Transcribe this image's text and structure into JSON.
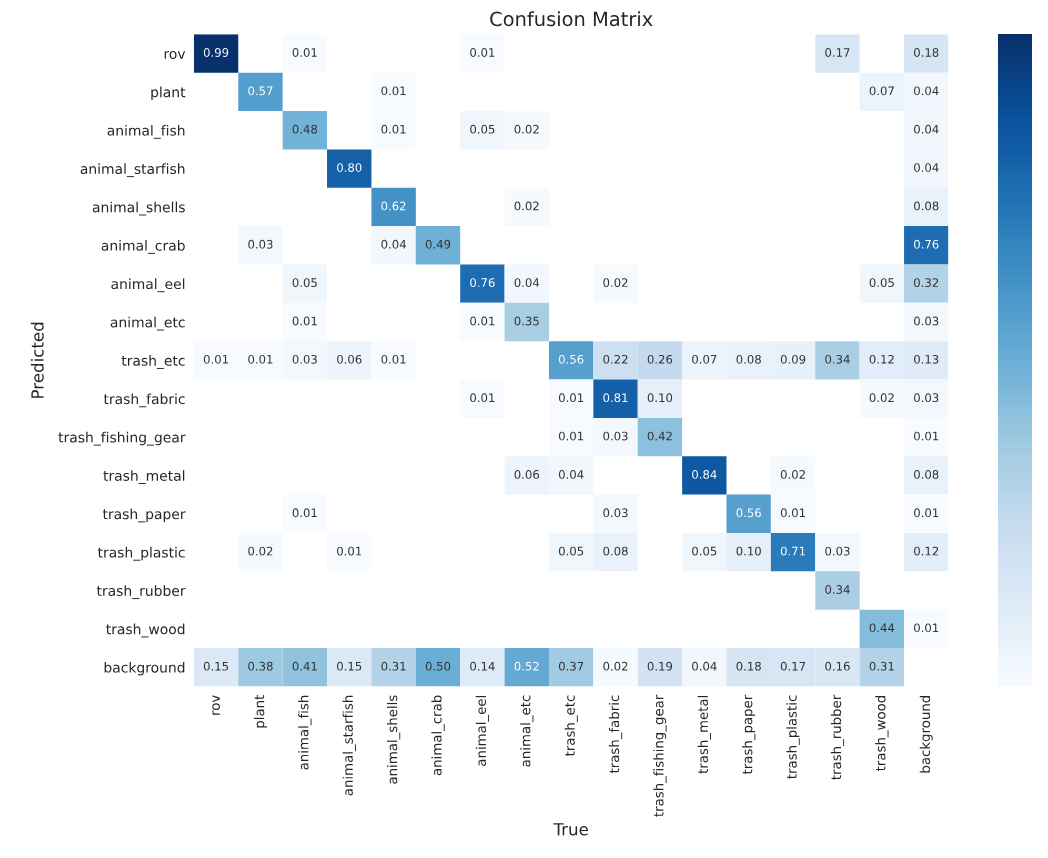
{
  "chart_data": {
    "type": "heatmap",
    "title": "Confusion Matrix",
    "xlabel": "True",
    "ylabel": "Predicted",
    "categories": [
      "rov",
      "plant",
      "animal_fish",
      "animal_starfish",
      "animal_shells",
      "animal_crab",
      "animal_eel",
      "animal_etc",
      "trash_etc",
      "trash_fabric",
      "trash_fishing_gear",
      "trash_metal",
      "trash_paper",
      "trash_plastic",
      "trash_rubber",
      "trash_wood",
      "background"
    ],
    "y_categories": [
      "rov",
      "plant",
      "animal_fish",
      "animal_starfish",
      "animal_shells",
      "animal_crab",
      "animal_eel",
      "animal_etc",
      "trash_etc",
      "trash_fabric",
      "trash_fishing_gear",
      "trash_metal",
      "trash_paper",
      "trash_plastic",
      "trash_rubber",
      "trash_wood",
      "background"
    ],
    "cells": [
      [
        0.99,
        null,
        0.01,
        null,
        null,
        null,
        0.01,
        null,
        null,
        null,
        null,
        null,
        null,
        null,
        0.17,
        null,
        0.18
      ],
      [
        null,
        0.57,
        null,
        null,
        0.01,
        null,
        null,
        null,
        null,
        null,
        null,
        null,
        null,
        null,
        null,
        0.07,
        0.04
      ],
      [
        null,
        null,
        0.48,
        null,
        0.01,
        null,
        0.05,
        0.02,
        null,
        null,
        null,
        null,
        null,
        null,
        null,
        null,
        0.04
      ],
      [
        null,
        null,
        null,
        0.8,
        null,
        null,
        null,
        null,
        null,
        null,
        null,
        null,
        null,
        null,
        null,
        null,
        0.04
      ],
      [
        null,
        null,
        null,
        null,
        0.62,
        null,
        null,
        0.02,
        null,
        null,
        null,
        null,
        null,
        null,
        null,
        null,
        0.08
      ],
      [
        null,
        0.03,
        null,
        null,
        0.04,
        0.49,
        null,
        null,
        null,
        null,
        null,
        null,
        null,
        null,
        null,
        null,
        0.76
      ],
      [
        null,
        null,
        0.05,
        null,
        null,
        null,
        0.76,
        0.04,
        null,
        0.02,
        null,
        null,
        null,
        null,
        null,
        0.05,
        0.32
      ],
      [
        null,
        null,
        0.01,
        null,
        null,
        null,
        0.01,
        0.35,
        null,
        null,
        null,
        null,
        null,
        null,
        null,
        null,
        0.03
      ],
      [
        0.01,
        0.01,
        0.03,
        0.06,
        0.01,
        null,
        null,
        null,
        0.56,
        0.22,
        0.26,
        0.07,
        0.08,
        0.09,
        0.34,
        0.12,
        0.13
      ],
      [
        null,
        null,
        null,
        null,
        null,
        null,
        0.01,
        null,
        0.01,
        0.81,
        0.1,
        null,
        null,
        null,
        null,
        0.02,
        0.03
      ],
      [
        null,
        null,
        null,
        null,
        null,
        null,
        null,
        null,
        0.01,
        0.03,
        0.42,
        null,
        null,
        null,
        null,
        null,
        0.01
      ],
      [
        null,
        null,
        null,
        null,
        null,
        null,
        null,
        0.06,
        0.04,
        null,
        null,
        0.84,
        null,
        0.02,
        null,
        null,
        0.08
      ],
      [
        null,
        null,
        0.01,
        null,
        null,
        null,
        null,
        null,
        null,
        0.03,
        null,
        null,
        0.56,
        0.01,
        null,
        null,
        0.01
      ],
      [
        null,
        0.02,
        null,
        0.01,
        null,
        null,
        null,
        null,
        0.05,
        0.08,
        null,
        0.05,
        0.1,
        0.71,
        0.03,
        null,
        0.12
      ],
      [
        null,
        null,
        null,
        null,
        null,
        null,
        null,
        null,
        null,
        null,
        null,
        null,
        null,
        null,
        0.34,
        null,
        null
      ],
      [
        null,
        null,
        null,
        null,
        null,
        null,
        null,
        null,
        null,
        null,
        null,
        null,
        null,
        null,
        null,
        0.44,
        0.01
      ],
      [
        0.15,
        0.38,
        0.41,
        0.15,
        0.31,
        0.5,
        0.14,
        0.52,
        0.37,
        0.02,
        0.19,
        0.04,
        0.18,
        0.17,
        0.16,
        0.31,
        null
      ]
    ],
    "cell_labels": [
      [
        "0.99",
        null,
        "0.01",
        null,
        null,
        null,
        "0.01",
        null,
        null,
        null,
        null,
        null,
        null,
        null,
        "0.17",
        null,
        "0.18"
      ],
      [
        null,
        "0.57",
        null,
        null,
        "0.01",
        null,
        null,
        null,
        null,
        null,
        null,
        null,
        null,
        null,
        null,
        "0.07",
        "0.04"
      ],
      [
        null,
        null,
        "0.48",
        null,
        "0.01",
        null,
        "0.05",
        "0.02",
        null,
        null,
        null,
        null,
        null,
        null,
        null,
        null,
        "0.04"
      ],
      [
        null,
        null,
        null,
        "0.80",
        null,
        null,
        null,
        null,
        null,
        null,
        null,
        null,
        null,
        null,
        null,
        null,
        "0.04"
      ],
      [
        null,
        null,
        null,
        null,
        "0.62",
        null,
        null,
        "0.02",
        null,
        null,
        null,
        null,
        null,
        null,
        null,
        null,
        "0.08"
      ],
      [
        null,
        "0.03",
        null,
        null,
        "0.04",
        "0.49",
        null,
        null,
        null,
        null,
        null,
        null,
        null,
        null,
        null,
        null,
        "0.76"
      ],
      [
        null,
        null,
        "0.05",
        null,
        null,
        null,
        "0.76",
        "0.04",
        null,
        "0.02",
        null,
        null,
        null,
        null,
        null,
        "0.05",
        "0.32"
      ],
      [
        null,
        null,
        "0.01",
        null,
        null,
        null,
        "0.01",
        "0.35",
        null,
        null,
        null,
        null,
        null,
        null,
        null,
        null,
        "0.03"
      ],
      [
        "0.01",
        "0.01",
        "0.03",
        "0.06",
        "0.01",
        null,
        null,
        null,
        "0.56",
        "0.22",
        "0.26",
        "0.07",
        "0.08",
        "0.09",
        "0.34",
        "0.12",
        "0.13"
      ],
      [
        null,
        null,
        null,
        null,
        null,
        null,
        "0.01",
        null,
        "0.01",
        "0.81",
        "0.10",
        null,
        null,
        null,
        null,
        "0.02",
        "0.03"
      ],
      [
        null,
        null,
        null,
        null,
        null,
        null,
        null,
        null,
        "0.01",
        "0.03",
        "0.42",
        null,
        null,
        null,
        null,
        null,
        "0.01"
      ],
      [
        null,
        null,
        null,
        null,
        null,
        null,
        null,
        "0.06",
        "0.04",
        null,
        null,
        "0.84",
        null,
        "0.02",
        null,
        null,
        "0.08"
      ],
      [
        null,
        null,
        "0.01",
        null,
        null,
        null,
        null,
        null,
        null,
        "0.03",
        null,
        null,
        "0.56",
        "0.01",
        null,
        null,
        "0.01"
      ],
      [
        null,
        "0.02",
        null,
        "0.01",
        null,
        null,
        null,
        null,
        "0.05",
        "0.08",
        null,
        "0.05",
        "0.10",
        "0.71",
        "0.03",
        null,
        "0.12"
      ],
      [
        null,
        null,
        null,
        null,
        null,
        null,
        null,
        null,
        null,
        null,
        null,
        null,
        null,
        null,
        "0.34",
        null,
        null
      ],
      [
        null,
        null,
        null,
        null,
        null,
        null,
        null,
        null,
        null,
        null,
        null,
        null,
        null,
        null,
        null,
        "0.44",
        "0.01"
      ],
      [
        "0.15",
        "0.38",
        "0.41",
        "0.15",
        "0.31",
        "0.50",
        "0.14",
        "0.52",
        "0.37",
        "0.02",
        "0.19",
        "0.04",
        "0.18",
        "0.17",
        "0.16",
        "0.31",
        null
      ]
    ]
  }
}
